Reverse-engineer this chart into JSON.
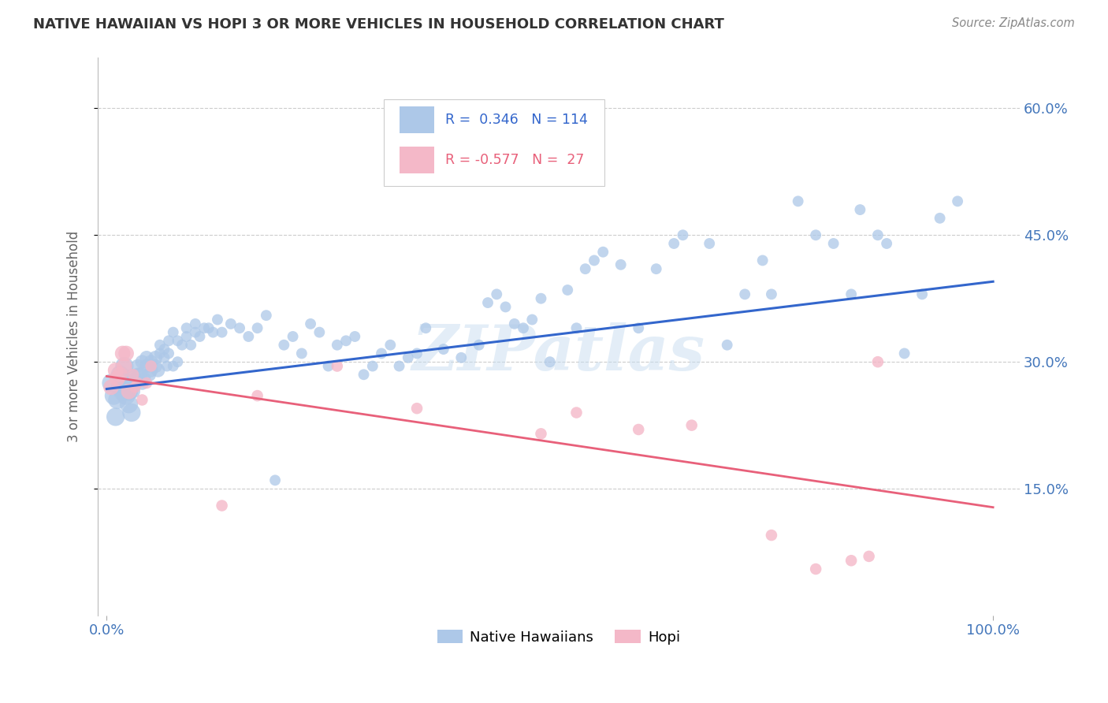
{
  "title": "NATIVE HAWAIIAN VS HOPI 3 OR MORE VEHICLES IN HOUSEHOLD CORRELATION CHART",
  "source": "Source: ZipAtlas.com",
  "ylabel": "3 or more Vehicles in Household",
  "ytick_vals": [
    0.15,
    0.3,
    0.45,
    0.6
  ],
  "ytick_labels": [
    "15.0%",
    "30.0%",
    "45.0%",
    "60.0%"
  ],
  "xtick_vals": [
    0.0,
    1.0
  ],
  "xtick_labels": [
    "0.0%",
    "100.0%"
  ],
  "xlim": [
    -0.01,
    1.03
  ],
  "ylim": [
    0.0,
    0.66
  ],
  "watermark": "ZIPatlas",
  "blue_color": "#adc8e8",
  "blue_line_color": "#3366cc",
  "pink_color": "#f4b8c8",
  "pink_line_color": "#e8607a",
  "blue_r": 0.346,
  "blue_n": 114,
  "pink_r": -0.577,
  "pink_n": 27,
  "blue_line_x": [
    0.0,
    1.0
  ],
  "blue_line_y": [
    0.268,
    0.395
  ],
  "pink_line_x": [
    0.0,
    1.0
  ],
  "pink_line_y": [
    0.283,
    0.128
  ],
  "native_hawaiian_x": [
    0.005,
    0.008,
    0.01,
    0.012,
    0.015,
    0.015,
    0.018,
    0.02,
    0.02,
    0.022,
    0.025,
    0.025,
    0.025,
    0.028,
    0.03,
    0.03,
    0.032,
    0.035,
    0.035,
    0.038,
    0.04,
    0.04,
    0.042,
    0.045,
    0.045,
    0.048,
    0.05,
    0.05,
    0.055,
    0.055,
    0.058,
    0.06,
    0.06,
    0.065,
    0.065,
    0.068,
    0.07,
    0.07,
    0.075,
    0.075,
    0.08,
    0.08,
    0.085,
    0.09,
    0.09,
    0.095,
    0.1,
    0.1,
    0.105,
    0.11,
    0.115,
    0.12,
    0.125,
    0.13,
    0.14,
    0.15,
    0.16,
    0.17,
    0.18,
    0.19,
    0.2,
    0.21,
    0.22,
    0.23,
    0.24,
    0.25,
    0.26,
    0.27,
    0.28,
    0.29,
    0.3,
    0.31,
    0.32,
    0.33,
    0.34,
    0.35,
    0.36,
    0.38,
    0.4,
    0.42,
    0.43,
    0.44,
    0.45,
    0.46,
    0.47,
    0.48,
    0.49,
    0.5,
    0.52,
    0.53,
    0.54,
    0.55,
    0.56,
    0.58,
    0.6,
    0.62,
    0.64,
    0.65,
    0.68,
    0.7,
    0.72,
    0.74,
    0.75,
    0.78,
    0.8,
    0.82,
    0.84,
    0.85,
    0.87,
    0.88,
    0.9,
    0.92,
    0.94,
    0.96
  ],
  "native_hawaiian_y": [
    0.275,
    0.26,
    0.235,
    0.255,
    0.27,
    0.285,
    0.265,
    0.27,
    0.295,
    0.26,
    0.28,
    0.25,
    0.265,
    0.24,
    0.275,
    0.265,
    0.28,
    0.285,
    0.295,
    0.285,
    0.3,
    0.275,
    0.28,
    0.295,
    0.305,
    0.285,
    0.3,
    0.29,
    0.295,
    0.305,
    0.29,
    0.31,
    0.32,
    0.305,
    0.315,
    0.295,
    0.31,
    0.325,
    0.295,
    0.335,
    0.3,
    0.325,
    0.32,
    0.33,
    0.34,
    0.32,
    0.335,
    0.345,
    0.33,
    0.34,
    0.34,
    0.335,
    0.35,
    0.335,
    0.345,
    0.34,
    0.33,
    0.34,
    0.355,
    0.16,
    0.32,
    0.33,
    0.31,
    0.345,
    0.335,
    0.295,
    0.32,
    0.325,
    0.33,
    0.285,
    0.295,
    0.31,
    0.32,
    0.295,
    0.305,
    0.31,
    0.34,
    0.315,
    0.305,
    0.32,
    0.37,
    0.38,
    0.365,
    0.345,
    0.34,
    0.35,
    0.375,
    0.3,
    0.385,
    0.34,
    0.41,
    0.42,
    0.43,
    0.415,
    0.34,
    0.41,
    0.44,
    0.45,
    0.44,
    0.32,
    0.38,
    0.42,
    0.38,
    0.49,
    0.45,
    0.44,
    0.38,
    0.48,
    0.45,
    0.44,
    0.31,
    0.38,
    0.47,
    0.49
  ],
  "hopi_x": [
    0.005,
    0.01,
    0.012,
    0.015,
    0.018,
    0.02,
    0.022,
    0.025,
    0.03,
    0.032,
    0.035,
    0.04,
    0.045,
    0.05,
    0.13,
    0.17,
    0.26,
    0.35,
    0.49,
    0.53,
    0.6,
    0.66,
    0.75,
    0.8,
    0.84,
    0.86,
    0.87
  ],
  "hopi_y": [
    0.27,
    0.29,
    0.28,
    0.285,
    0.31,
    0.295,
    0.31,
    0.265,
    0.285,
    0.27,
    0.275,
    0.255,
    0.275,
    0.295,
    0.13,
    0.26,
    0.295,
    0.245,
    0.215,
    0.24,
    0.22,
    0.225,
    0.095,
    0.055,
    0.065,
    0.07,
    0.3
  ]
}
